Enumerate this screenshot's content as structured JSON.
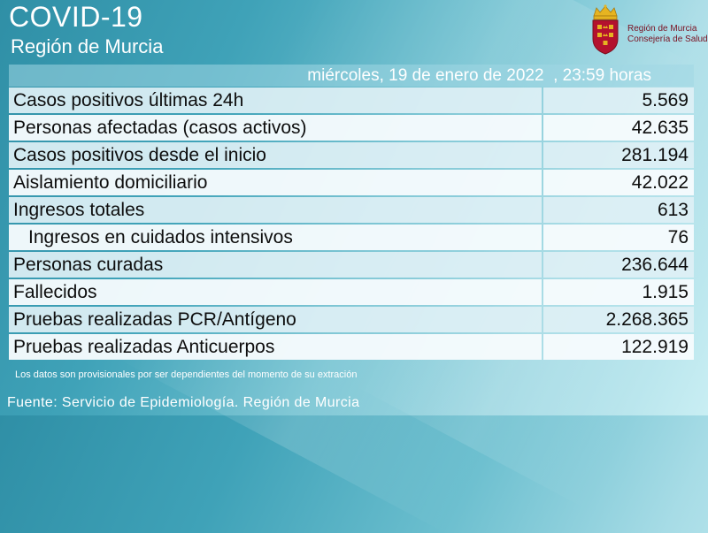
{
  "header": {
    "title": "COVID-19",
    "subtitle": "Región de Murcia"
  },
  "logo": {
    "line1": "Región de Murcia",
    "line2": "Consejería de Salud"
  },
  "date": "miércoles, 19 de enero de 2022  , 23:59 horas",
  "rows": [
    {
      "label": "Casos positivos últimas 24h",
      "value": "5.569"
    },
    {
      "label": "Personas afectadas (casos activos)",
      "value": "42.635"
    },
    {
      "label": "Casos positivos desde el inicio",
      "value": "281.194"
    },
    {
      "label": "Aislamiento domiciliario",
      "value": "42.022"
    },
    {
      "label": "Ingresos totales",
      "value": "613"
    },
    {
      "label": "Ingresos en cuidados intensivos",
      "value": "76"
    },
    {
      "label": "Personas curadas",
      "value": "236.644"
    },
    {
      "label": "Fallecidos",
      "value": "1.915"
    },
    {
      "label": "Pruebas realizadas PCR/Antígeno",
      "value": "2.268.365"
    },
    {
      "label": "Pruebas realizadas Anticuerpos",
      "value": "122.919"
    }
  ],
  "note": "Los datos son provisionales por ser dependientes del momento de su extración",
  "footer": "Fuente: Servicio de Epidemiología.  Región de Murcia",
  "colors": {
    "background": "#3fa2b8",
    "logo_red": "#b3122e",
    "logo_gold": "#e6b421"
  }
}
